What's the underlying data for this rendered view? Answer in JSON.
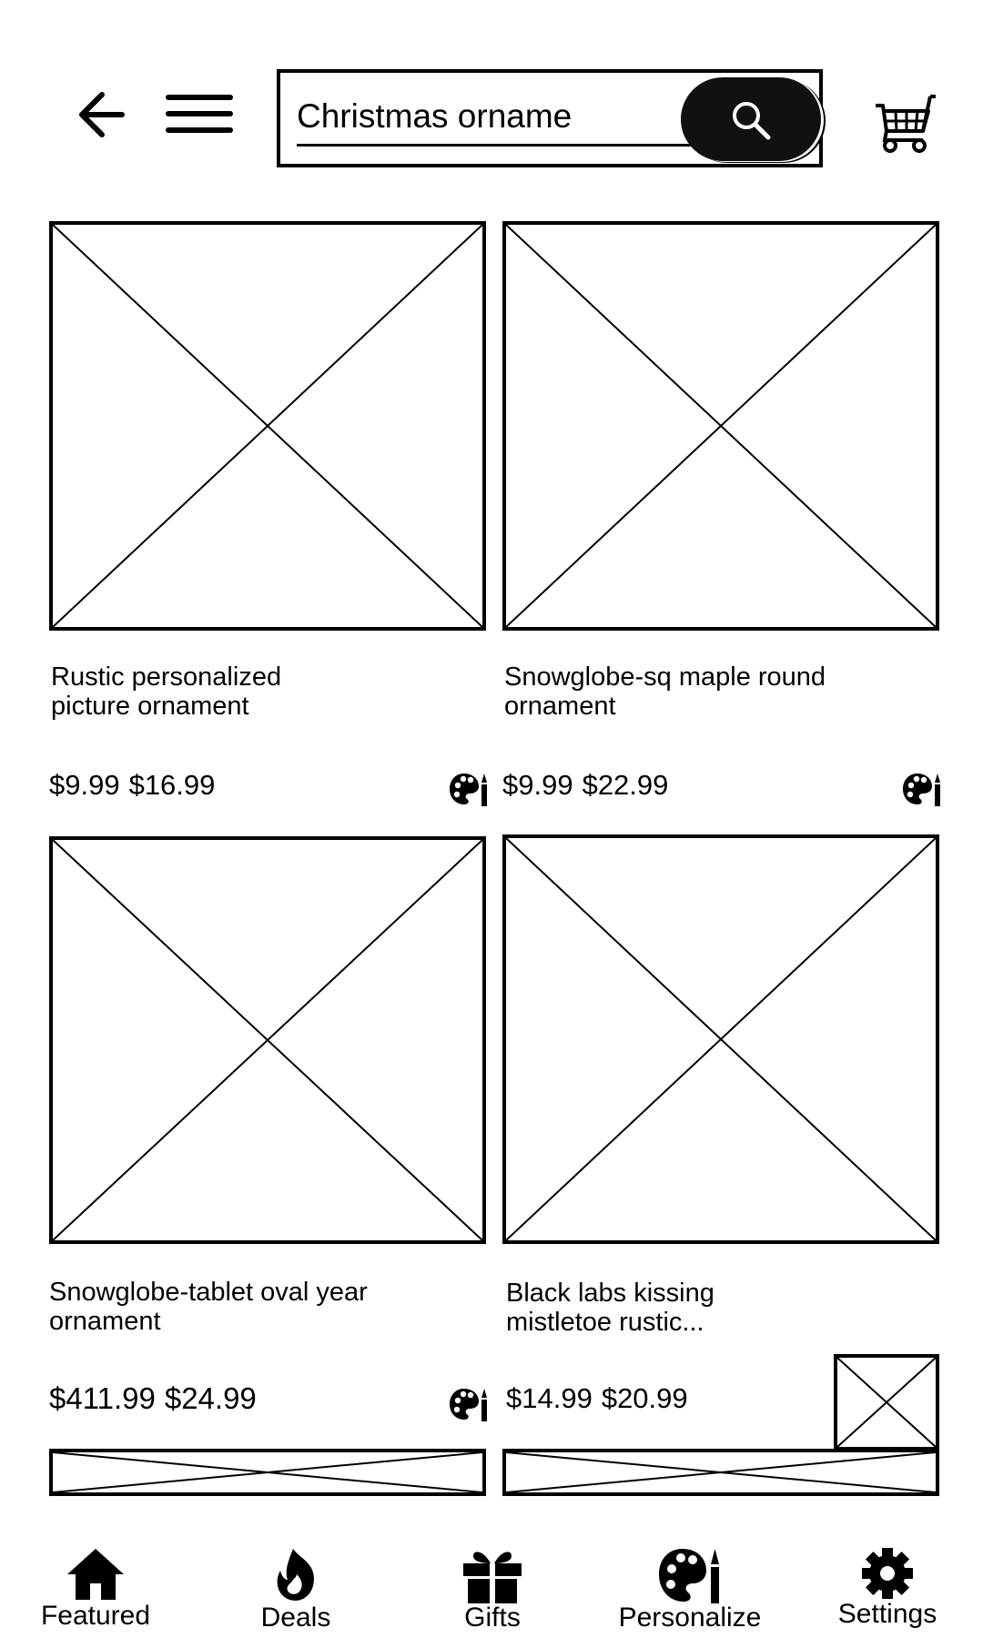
{
  "header": {
    "search": {
      "value": "Christmas orname",
      "placeholder": "Search"
    }
  },
  "products": [
    {
      "title_line1": "Rustic personalized",
      "title_line2": "picture ornament",
      "price_sale": "$9.99",
      "price_regular": "$16.99"
    },
    {
      "title_line1": "Snowglobe-sq maple round",
      "title_line2": "ornament",
      "price_sale": "$9.99",
      "price_regular": "$22.99"
    },
    {
      "title_line1": "Snowglobe-tablet oval year",
      "title_line2": "ornament",
      "price_sale": "$411.99",
      "price_regular": "$24.99"
    },
    {
      "title_line1": "Black labs kissing",
      "title_line2": "mistletoe rustic...",
      "price_sale": "$14.99",
      "price_regular": "$20.99"
    }
  ],
  "bottom_nav": [
    {
      "label": "Featured",
      "icon": "home-icon"
    },
    {
      "label": "Deals",
      "icon": "flame-icon"
    },
    {
      "label": "Gifts",
      "icon": "gift-icon"
    },
    {
      "label": "Personalize",
      "icon": "palette-icon"
    },
    {
      "label": "Settings",
      "icon": "gear-icon"
    }
  ],
  "icons": {
    "back": "arrow-left-icon",
    "menu": "hamburger-icon",
    "search": "search-icon",
    "cart": "cart-icon",
    "personalize_badge": "palette-brush-icon"
  }
}
